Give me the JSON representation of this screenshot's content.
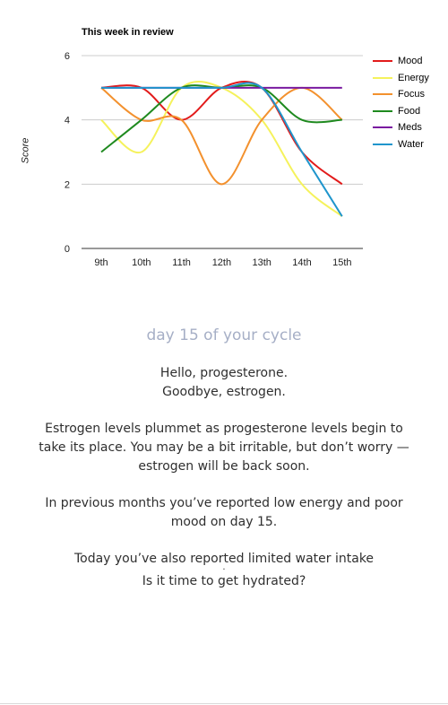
{
  "chart_data": {
    "type": "line",
    "title": "This week in review",
    "xlabel": "",
    "ylabel": "Score",
    "categories": [
      "9th",
      "10th",
      "11th",
      "12th",
      "13th",
      "14th",
      "15th"
    ],
    "ylim": [
      0,
      6
    ],
    "yticks": [
      0,
      2,
      4,
      6
    ],
    "grid": true,
    "legend": "right",
    "series": [
      {
        "name": "Mood",
        "color": "#e21b1b",
        "values": [
          5,
          5,
          4,
          5,
          5,
          3,
          2
        ]
      },
      {
        "name": "Energy",
        "color": "#f5f25c",
        "values": [
          4,
          3,
          5,
          5,
          4,
          2,
          1
        ]
      },
      {
        "name": "Focus",
        "color": "#f3912e",
        "values": [
          5,
          4,
          4,
          2,
          4,
          5,
          4
        ]
      },
      {
        "name": "Food",
        "color": "#1f8a1f",
        "values": [
          3,
          4,
          5,
          5,
          5,
          4,
          4
        ]
      },
      {
        "name": "Meds",
        "color": "#7a1aa0",
        "values": [
          5,
          5,
          5,
          5,
          5,
          5,
          5
        ]
      },
      {
        "name": "Water",
        "color": "#1f95cc",
        "values": [
          5,
          5,
          5,
          5,
          5,
          3,
          1
        ]
      }
    ]
  },
  "message": {
    "cycle_day": "day 15 of your cycle",
    "greeting_line1": "Hello, progesterone.",
    "greeting_line2": "Goodbye, estrogen.",
    "paragraph1": "Estrogen levels plummet as progesterone levels begin to take its place. You may be a bit irritable, but don’t worry — estrogen will be back soon.",
    "paragraph2": "In previous months you’ve reported low energy and poor mood on day 15.",
    "paragraph3": "Today you’ve also reported limited water intake",
    "dot": ".",
    "question": "Is it time to get hydrated?"
  }
}
